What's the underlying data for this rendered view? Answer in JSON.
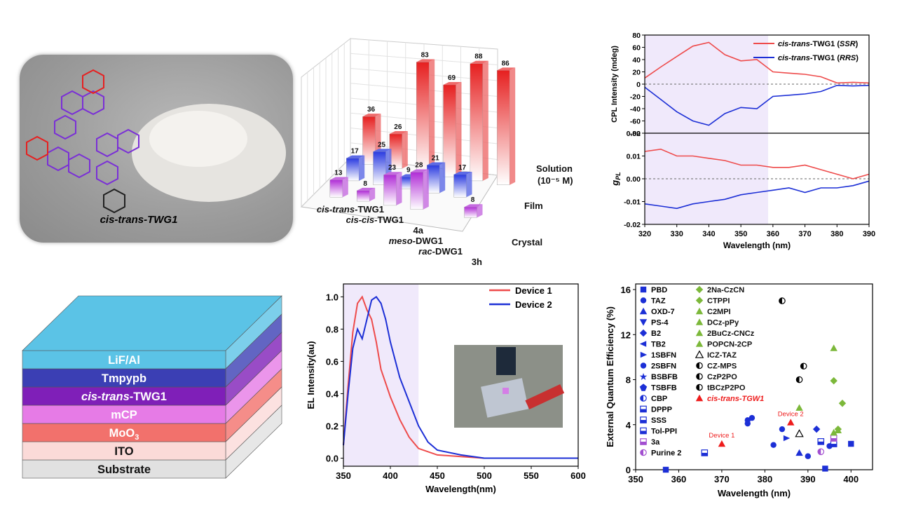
{
  "photo": {
    "compound_label": "cis-trans-TWG1"
  },
  "bar3d": {
    "chart_data": {
      "type": "bar",
      "categories": [
        "cis-trans-TWG1",
        "cis-cis-TWG1",
        "4a",
        "meso-DWG1",
        "rac-DWG1",
        "3h"
      ],
      "series": [
        {
          "name": "Crystal",
          "values": [
            13,
            8,
            23,
            28,
            null,
            8
          ]
        },
        {
          "name": "Film",
          "values": [
            17,
            25,
            9,
            21,
            17,
            null
          ]
        },
        {
          "name": "Solution (10⁻⁵ M)",
          "values": [
            36,
            26,
            83,
            69,
            88,
            86
          ]
        }
      ],
      "series_labels": [
        "Solution",
        "(10⁻⁵ M)",
        "Film",
        "Crystal"
      ]
    }
  },
  "cpl": {
    "chart_data": {
      "type": "line",
      "xlabel": "Wavelength (nm)",
      "xlim": [
        320,
        390
      ],
      "xticks": [
        320,
        330,
        340,
        350,
        360,
        370,
        380,
        390
      ],
      "top": {
        "ylabel": "CPL Intensity (mdeg)",
        "ylim": [
          -80,
          80
        ],
        "yticks": [
          -80,
          -60,
          -40,
          -20,
          0,
          20,
          40,
          60,
          80
        ],
        "series": [
          {
            "name": "cis-trans-TWG1 (SSR)",
            "color": "#ee4b4b",
            "x": [
              320,
              325,
              330,
              335,
              340,
              345,
              350,
              355,
              360,
              365,
              370,
              375,
              380,
              385,
              390
            ],
            "y": [
              10,
              28,
              45,
              62,
              68,
              48,
              38,
              40,
              20,
              18,
              16,
              12,
              2,
              3,
              2
            ]
          },
          {
            "name": "cis-trans-TWG1 (RRS)",
            "color": "#1c2fd6",
            "x": [
              320,
              325,
              330,
              335,
              340,
              345,
              350,
              355,
              360,
              365,
              370,
              375,
              380,
              385,
              390
            ],
            "y": [
              -5,
              -25,
              -45,
              -60,
              -67,
              -48,
              -38,
              -40,
              -20,
              -18,
              -16,
              -12,
              -2,
              -3,
              -2
            ]
          }
        ],
        "legend": [
          "cis-trans-TWG1 (",
          "SSR",
          ")",
          "cis-trans-TWG1 (",
          "RRS",
          ")"
        ]
      },
      "bottom": {
        "ylabel": "gPL",
        "ylim": [
          -0.02,
          0.02
        ],
        "yticks": [
          -0.02,
          -0.01,
          0.0,
          0.01,
          0.02
        ],
        "series": [
          {
            "name": "SSR",
            "color": "#ee4b4b",
            "x": [
              320,
              325,
              330,
              335,
              340,
              345,
              350,
              355,
              360,
              365,
              370,
              375,
              380,
              385,
              390
            ],
            "y": [
              0.012,
              0.013,
              0.01,
              0.01,
              0.009,
              0.008,
              0.006,
              0.006,
              0.005,
              0.005,
              0.006,
              0.004,
              0.002,
              0.0,
              0.002
            ]
          },
          {
            "name": "RRS",
            "color": "#1c2fd6",
            "x": [
              320,
              325,
              330,
              335,
              340,
              345,
              350,
              355,
              360,
              365,
              370,
              375,
              380,
              385,
              390
            ],
            "y": [
              -0.011,
              -0.012,
              -0.013,
              -0.011,
              -0.01,
              -0.009,
              -0.007,
              -0.006,
              -0.005,
              -0.004,
              -0.006,
              -0.004,
              -0.004,
              -0.003,
              -0.001
            ]
          }
        ]
      }
    }
  },
  "device": {
    "layers": [
      {
        "label": "LiF/Al",
        "color": "#5bc3e6"
      },
      {
        "label": "Tmpypb",
        "color": "#3b3fb4"
      },
      {
        "label": "cis-trans-TWG1",
        "color": "#7f1fb8"
      },
      {
        "label": "mCP",
        "color": "#e67be6"
      },
      {
        "label": "MoO3",
        "color": "#f2716c"
      },
      {
        "label": "ITO",
        "color": "#fbdad8"
      },
      {
        "label": "Substrate",
        "color": "#e1e1e1"
      }
    ]
  },
  "el": {
    "chart_data": {
      "type": "line",
      "xlabel": "Wavelength(nm)",
      "ylabel": "EL Intensity(au)",
      "xlim": [
        350,
        600
      ],
      "ylim": [
        -0.05,
        1.08
      ],
      "xticks": [
        350,
        400,
        450,
        500,
        550,
        600
      ],
      "yticks": [
        0.0,
        0.2,
        0.4,
        0.6,
        0.8,
        1.0
      ],
      "series": [
        {
          "name": "Device 1",
          "color": "#ee4b4b",
          "x": [
            350,
            355,
            360,
            365,
            370,
            375,
            380,
            385,
            390,
            400,
            410,
            420,
            430,
            450,
            475,
            500,
            550,
            600
          ],
          "y": [
            0.08,
            0.45,
            0.78,
            0.96,
            1.0,
            0.92,
            0.86,
            0.72,
            0.55,
            0.38,
            0.24,
            0.13,
            0.06,
            0.02,
            0.01,
            0.0,
            0.0,
            0.0
          ]
        },
        {
          "name": "Device 2",
          "color": "#1c2fd6",
          "x": [
            350,
            355,
            360,
            365,
            370,
            375,
            380,
            385,
            390,
            395,
            400,
            410,
            420,
            430,
            440,
            450,
            475,
            500,
            550,
            600
          ],
          "y": [
            0.08,
            0.4,
            0.68,
            0.8,
            0.74,
            0.86,
            0.98,
            1.0,
            0.96,
            0.86,
            0.72,
            0.5,
            0.35,
            0.2,
            0.1,
            0.05,
            0.02,
            0.0,
            0.0,
            0.0
          ]
        }
      ]
    }
  },
  "eqe": {
    "chart_data": {
      "type": "scatter",
      "xlabel": "Wavelength (nm)",
      "ylabel": "External Quantum Efficiency (%)",
      "xlim": [
        350,
        405
      ],
      "ylim": [
        0,
        16.5
      ],
      "xticks": [
        350,
        360,
        370,
        380,
        390,
        400
      ],
      "yticks": [
        0,
        4,
        8,
        12,
        16
      ],
      "annotations": [
        "Device 1",
        "Device 2"
      ],
      "legend_col1": [
        "PBD",
        "TAZ",
        "OXD-7",
        "PS-4",
        "B2",
        "TB2",
        "1SBFN",
        "2SBFN",
        "BSBFB",
        "TSBFB",
        "CBP",
        "DPPP",
        "SSS",
        "Tol-PPI",
        "3a",
        "Purine 2"
      ],
      "legend_col2": [
        "2Na-CzCN",
        "CTPPI",
        "C2MPI",
        "DCz-pPy",
        "2BuCz-CNCz",
        "POPCN-2CP",
        "ICZ-TAZ",
        "CZ-MPS",
        "CzP2PO",
        "tBCzP2PO",
        "cis-trans-TGW1"
      ],
      "points": [
        {
          "x": 357,
          "y": 0.0,
          "c": "#1c2fd6",
          "s": "square"
        },
        {
          "x": 366,
          "y": 1.5,
          "c": "#1c2fd6",
          "s": "halfsq"
        },
        {
          "x": 370,
          "y": 2.3,
          "c": "#ee1c1c",
          "s": "tri"
        },
        {
          "x": 376,
          "y": 4.1,
          "c": "#1c2fd6",
          "s": "circle"
        },
        {
          "x": 376,
          "y": 4.4,
          "c": "#1c2fd6",
          "s": "circle"
        },
        {
          "x": 377,
          "y": 4.6,
          "c": "#1c2fd6",
          "s": "circle"
        },
        {
          "x": 382,
          "y": 2.2,
          "c": "#1c2fd6",
          "s": "circle"
        },
        {
          "x": 384,
          "y": 3.6,
          "c": "#1c2fd6",
          "s": "circle"
        },
        {
          "x": 384,
          "y": 15.0,
          "c": "#000000",
          "s": "halfc"
        },
        {
          "x": 385,
          "y": 2.8,
          "c": "#1c2fd6",
          "s": "tri-r"
        },
        {
          "x": 386,
          "y": 4.2,
          "c": "#ee1c1c",
          "s": "tri"
        },
        {
          "x": 388,
          "y": 8.0,
          "c": "#000000",
          "s": "halfc"
        },
        {
          "x": 388,
          "y": 3.2,
          "c": "#000000",
          "s": "tri-open"
        },
        {
          "x": 388,
          "y": 5.5,
          "c": "#7cb83a",
          "s": "tri"
        },
        {
          "x": 388,
          "y": 1.5,
          "c": "#1c2fd6",
          "s": "tri"
        },
        {
          "x": 389,
          "y": 9.2,
          "c": "#000000",
          "s": "halfc"
        },
        {
          "x": 390,
          "y": 1.2,
          "c": "#1c2fd6",
          "s": "circle"
        },
        {
          "x": 392,
          "y": 3.6,
          "c": "#1c2fd6",
          "s": "diamond"
        },
        {
          "x": 393,
          "y": 1.6,
          "c": "#a24fd0",
          "s": "halfc"
        },
        {
          "x": 393,
          "y": 2.5,
          "c": "#1c2fd6",
          "s": "halfsq"
        },
        {
          "x": 394,
          "y": 0.1,
          "c": "#1c2fd6",
          "s": "square"
        },
        {
          "x": 395,
          "y": 2.1,
          "c": "#1c2fd6",
          "s": "circle"
        },
        {
          "x": 396,
          "y": 2.3,
          "c": "#1c2fd6",
          "s": "halfsq"
        },
        {
          "x": 396,
          "y": 2.8,
          "c": "#a24fd0",
          "s": "halfsq"
        },
        {
          "x": 396,
          "y": 3.3,
          "c": "#7cb83a",
          "s": "tri"
        },
        {
          "x": 396,
          "y": 7.9,
          "c": "#7cb83a",
          "s": "diamond"
        },
        {
          "x": 396,
          "y": 10.8,
          "c": "#7cb83a",
          "s": "tri"
        },
        {
          "x": 397,
          "y": 3.5,
          "c": "#7cb83a",
          "s": "tri"
        },
        {
          "x": 397,
          "y": 3.6,
          "c": "#7cb83a",
          "s": "diamond"
        },
        {
          "x": 398,
          "y": 5.9,
          "c": "#7cb83a",
          "s": "diamond"
        },
        {
          "x": 400,
          "y": 2.3,
          "c": "#1c2fd6",
          "s": "square"
        }
      ]
    }
  }
}
